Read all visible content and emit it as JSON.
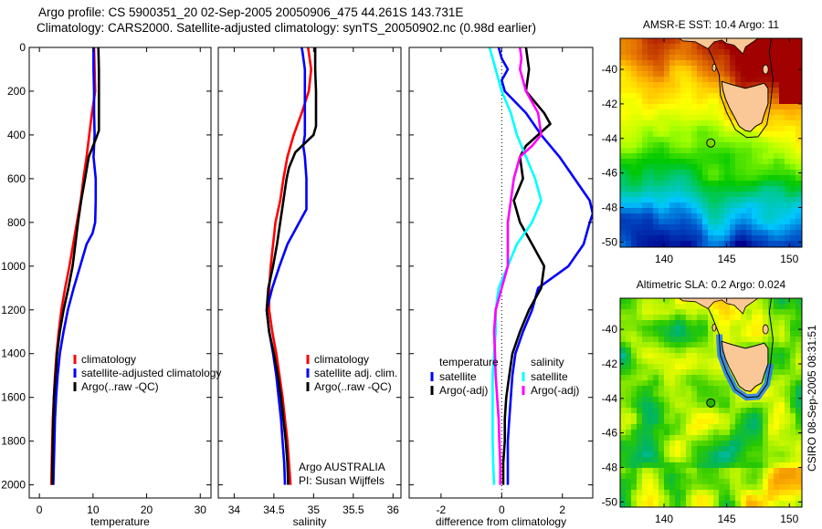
{
  "header": {
    "title_line1": "Argo profile: CS 5900351_20 02-Sep-2005 20050906_475 44.261S 143.731E",
    "title_line2": "Climatology: CARS2000. Satellite-adjusted climatology: synTS_20050902.nc (0.98d earlier)"
  },
  "footer_stamp": "CSIRO 08-Sep-2005 08:31:51",
  "colors": {
    "climatology": "#ff0000",
    "satellite": "#0000ff",
    "argo": "#000000",
    "salinity_satellite": "#00ffff",
    "salinity_argo": "#ff00ff"
  },
  "chart_data": [
    {
      "type": "line",
      "id": "temperature",
      "title": "",
      "xlabel": "temperature",
      "ylabel": "",
      "xlim": [
        -1.9,
        32
      ],
      "ylim": [
        2060,
        0
      ],
      "xticks": [
        0,
        10,
        20,
        30
      ],
      "yticks": [
        0,
        200,
        400,
        600,
        800,
        1000,
        1200,
        1400,
        1600,
        1800,
        2000
      ],
      "legend": {
        "placement": "center-left",
        "entries": [
          "climatology",
          "satellite-adjusted climatology",
          "Argo(..raw -QC)"
        ]
      },
      "series": [
        {
          "name": "climatology",
          "color": "#ff0000",
          "depth": [
            0,
            100,
            200,
            300,
            400,
            500,
            600,
            700,
            800,
            900,
            1000,
            1100,
            1200,
            1300,
            1400,
            1500,
            1600,
            1700,
            1800,
            1900,
            2000
          ],
          "values": [
            10.2,
            10.3,
            10.4,
            9.8,
            9.3,
            8.8,
            8.2,
            7.7,
            7.0,
            6.3,
            5.6,
            4.8,
            4.1,
            3.6,
            3.2,
            2.9,
            2.7,
            2.5,
            2.4,
            2.3,
            2.2
          ]
        },
        {
          "name": "satellite-adjusted climatology",
          "color": "#0000ff",
          "depth": [
            0,
            100,
            200,
            300,
            400,
            500,
            600,
            700,
            800,
            850,
            900,
            1000,
            1100,
            1200,
            1300,
            1400,
            1500,
            1600,
            1700,
            1800,
            1900,
            2000
          ],
          "values": [
            10.1,
            10.1,
            10.2,
            10.2,
            10.3,
            10.1,
            10.5,
            10.5,
            10.4,
            9.9,
            8.8,
            7.6,
            6.4,
            5.3,
            4.5,
            3.8,
            3.4,
            3.1,
            2.9,
            2.8,
            2.7,
            2.6
          ]
        },
        {
          "name": "Argo(..raw -QC)",
          "color": "#000000",
          "depth": [
            0,
            100,
            200,
            300,
            380,
            420,
            500,
            600,
            700,
            800,
            900,
            1000,
            1100,
            1200,
            1300,
            1400,
            1500,
            1600,
            1700,
            1800,
            1900,
            2000
          ],
          "values": [
            11.0,
            11.1,
            11.1,
            11.1,
            11.1,
            10.5,
            9.2,
            8.5,
            7.8,
            7.2,
            6.7,
            6.2,
            5.4,
            4.5,
            3.8,
            3.3,
            3.0,
            2.7,
            2.6,
            2.5,
            2.4,
            2.4
          ]
        }
      ]
    },
    {
      "type": "line",
      "id": "salinity",
      "xlabel": "salinity",
      "xlim": [
        33.8,
        36.1
      ],
      "ylim": [
        2060,
        0
      ],
      "xticks": [
        34,
        34.5,
        35,
        35.5,
        36
      ],
      "xtick_labels": [
        "34",
        "34.5",
        "35",
        "35.5",
        "36"
      ],
      "legend": {
        "placement": "center-right",
        "entries": [
          "climatology",
          "satellite adj. clim.",
          "Argo(..raw -QC)"
        ]
      },
      "annotation": [
        "Argo AUSTRALIA",
        "PI: Susan Wijffels"
      ],
      "series": [
        {
          "name": "climatology",
          "color": "#ff0000",
          "depth": [
            0,
            100,
            200,
            300,
            400,
            500,
            600,
            700,
            800,
            900,
            1000,
            1100,
            1200,
            1300,
            1400,
            1500,
            1600,
            1700,
            1800,
            1900,
            2000
          ],
          "values": [
            34.93,
            34.97,
            34.94,
            34.85,
            34.75,
            34.67,
            34.62,
            34.58,
            34.52,
            34.49,
            34.46,
            34.44,
            34.44,
            34.48,
            34.53,
            34.57,
            34.61,
            34.64,
            34.67,
            34.69,
            34.71
          ]
        },
        {
          "name": "satellite adj. clim.",
          "color": "#0000ff",
          "depth": [
            0,
            20,
            100,
            200,
            300,
            400,
            450,
            500,
            600,
            700,
            740,
            800,
            900,
            1000,
            1100,
            1200,
            1300,
            1400,
            1500,
            1600,
            1700,
            1800,
            1900,
            2000
          ],
          "values": [
            34.85,
            34.86,
            34.89,
            34.89,
            34.89,
            34.89,
            34.87,
            34.89,
            34.91,
            34.91,
            34.91,
            34.82,
            34.67,
            34.57,
            34.48,
            34.41,
            34.44,
            34.49,
            34.53,
            34.56,
            34.59,
            34.61,
            34.63,
            34.64
          ]
        },
        {
          "name": "Argo(..raw -QC)",
          "color": "#000000",
          "depth": [
            0,
            100,
            200,
            300,
            360,
            400,
            480,
            550,
            600,
            700,
            800,
            900,
            1000,
            1100,
            1200,
            1300,
            1400,
            1500,
            1600,
            1700,
            1800,
            1900,
            2000
          ],
          "values": [
            35.02,
            35.02,
            35.03,
            35.03,
            35.03,
            35.0,
            34.77,
            34.69,
            34.66,
            34.62,
            34.58,
            34.54,
            34.49,
            34.43,
            34.41,
            34.44,
            34.5,
            34.55,
            34.59,
            34.62,
            34.65,
            34.67,
            34.68
          ]
        }
      ]
    },
    {
      "type": "line",
      "id": "difference",
      "xlabel": "difference from climatology",
      "xlim": [
        -3.05,
        3.0
      ],
      "ylim": [
        2060,
        0
      ],
      "xticks": [
        -2,
        0,
        2
      ],
      "zero_line": true,
      "legend": {
        "placement": "center",
        "groups": [
          {
            "heading": "temperature",
            "entries": [
              "satellite",
              "Argo(-adj)"
            ]
          },
          {
            "heading": "salinity",
            "entries": [
              "satellite",
              "Argo(-adj)"
            ]
          }
        ]
      },
      "series": [
        {
          "name": "temperature satellite",
          "color": "#0000ff",
          "depth": [
            0,
            50,
            100,
            150,
            200,
            300,
            400,
            500,
            600,
            700,
            760,
            800,
            900,
            1000,
            1100,
            1200,
            1300,
            1400,
            1500,
            1600,
            1700,
            1800,
            1900,
            2000
          ],
          "values": [
            -0.1,
            0.0,
            0.2,
            0.0,
            0.1,
            0.8,
            1.3,
            1.9,
            2.4,
            2.9,
            3.0,
            2.9,
            2.7,
            2.2,
            1.2,
            1.0,
            0.7,
            0.45,
            0.35,
            0.3,
            0.25,
            0.2,
            0.2,
            0.2
          ]
        },
        {
          "name": "temperature Argo(-adj)",
          "color": "#000000",
          "depth": [
            0,
            100,
            200,
            300,
            350,
            400,
            450,
            500,
            600,
            700,
            800,
            900,
            1000,
            1100,
            1200,
            1300,
            1400,
            1500,
            1600,
            1700,
            1800,
            1900,
            2000
          ],
          "values": [
            0.8,
            0.9,
            0.8,
            1.4,
            1.6,
            1.2,
            0.8,
            0.6,
            0.7,
            0.4,
            0.6,
            1.0,
            1.4,
            1.3,
            0.9,
            0.6,
            0.35,
            0.25,
            0.15,
            0.1,
            0.1,
            0.05,
            0.05
          ]
        },
        {
          "name": "salinity satellite",
          "color": "#00ffff",
          "depth": [
            0,
            50,
            100,
            200,
            300,
            400,
            500,
            600,
            700,
            800,
            900,
            1000,
            1100,
            1200,
            1300,
            1400,
            1500,
            1600,
            1700,
            1800,
            1900,
            2000
          ],
          "values": [
            -0.4,
            -0.3,
            -0.2,
            0.0,
            0.3,
            0.5,
            0.8,
            1.1,
            1.3,
            1.0,
            0.5,
            0.2,
            -0.1,
            -0.2,
            -0.2,
            -0.25,
            -0.3,
            -0.3,
            -0.3,
            -0.3,
            -0.28,
            -0.25
          ]
        },
        {
          "name": "salinity Argo(-adj)",
          "color": "#ff00ff",
          "depth": [
            0,
            50,
            100,
            200,
            300,
            400,
            450,
            500,
            600,
            700,
            800,
            900,
            1000,
            1100,
            1200,
            1300,
            1400,
            1500,
            1600,
            1700,
            1800,
            1900,
            2000
          ],
          "values": [
            0.6,
            0.65,
            0.6,
            0.8,
            1.2,
            1.3,
            1.0,
            0.6,
            0.4,
            0.3,
            0.2,
            0.2,
            0.2,
            0.0,
            -0.2,
            -0.25,
            -0.22,
            -0.2,
            -0.15,
            -0.1,
            -0.08,
            -0.05,
            -0.05
          ]
        }
      ]
    },
    {
      "type": "heatmap",
      "id": "sst-map",
      "title": "AMSR-E SST: 10.4 Argo: 11",
      "xlim": [
        136.5,
        151
      ],
      "ylim": [
        -50.3,
        -38.2
      ],
      "xticks": [
        140,
        145,
        150
      ],
      "yticks": [
        -40,
        -42,
        -44,
        -46,
        -48,
        -50
      ],
      "argo_position": {
        "lon": 143.731,
        "lat": -44.261
      },
      "colormap": [
        "#00008b",
        "#0050c8",
        "#00c8ff",
        "#00c896",
        "#00c800",
        "#a0ff00",
        "#ffff00",
        "#ffb400",
        "#dc6400",
        "#a00000"
      ]
    },
    {
      "type": "heatmap",
      "id": "sla-map",
      "title": "Altimetric SLA: 0.2 Argo: 0.024",
      "xlim": [
        136.5,
        151
      ],
      "ylim": [
        -50.3,
        -38.2
      ],
      "xticks": [
        140,
        145,
        150
      ],
      "yticks": [
        -40,
        -42,
        -44,
        -46,
        -48,
        -50
      ],
      "argo_position": {
        "lon": 143.731,
        "lat": -44.261
      },
      "colormap": [
        "#0050c8",
        "#00c8ff",
        "#00b464",
        "#28c800",
        "#a0f000",
        "#ffff00",
        "#ffb400",
        "#e07000"
      ]
    }
  ]
}
